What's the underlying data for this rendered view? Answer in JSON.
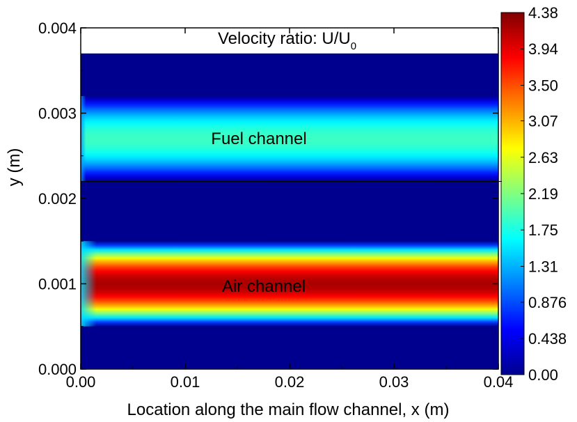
{
  "chart_data": {
    "type": "heatmap",
    "title": "",
    "xlabel": "Location along the main flow channel, x (m)",
    "ylabel": "y (m)",
    "xlim": [
      0,
      0.04
    ],
    "ylim": [
      0,
      0.004
    ],
    "x_ticks": [
      0,
      0.01,
      0.02,
      0.03,
      0.04
    ],
    "x_tick_labels": [
      "0.00",
      "0.01",
      "0.02",
      "0.03",
      "0.04"
    ],
    "y_ticks": [
      0,
      0.001,
      0.002,
      0.003,
      0.004
    ],
    "y_tick_labels": [
      "0.000",
      "0.001",
      "0.002",
      "0.003",
      "0.004"
    ],
    "annotation_text": "Velocity ratio: U/U",
    "annotation_subscript": "0",
    "colorbar": {
      "min": 0,
      "max": 4.38,
      "tick_values": [
        0,
        0.438,
        0.876,
        1.31,
        1.75,
        2.19,
        2.63,
        3.07,
        3.5,
        3.94,
        4.38
      ],
      "tick_labels": [
        "0.00",
        "0.438",
        "0.876",
        "1.31",
        "1.75",
        "2.19",
        "2.63",
        "3.07",
        "3.50",
        "3.94",
        "4.38"
      ],
      "colormap": [
        "#00008f",
        "#0000ff",
        "#0080ff",
        "#00ffff",
        "#80ff80",
        "#ffff00",
        "#ff8000",
        "#ff0000",
        "#800000"
      ]
    },
    "domain_top_y": 0.0037,
    "interface_y": 0.0022,
    "channels": [
      {
        "label": "Fuel channel",
        "y_min": 0.0022,
        "y_max": 0.0032,
        "peak_ratio": 1.9,
        "inlet_ratio": 1.2,
        "developed_x": 0.0005
      },
      {
        "label": "Air channel",
        "y_min": 0.0005,
        "y_max": 0.0015,
        "peak_ratio": 4.2,
        "inlet_ratio": 1.5,
        "developed_x": 0.0015
      }
    ],
    "background_ratio": 0.0
  }
}
